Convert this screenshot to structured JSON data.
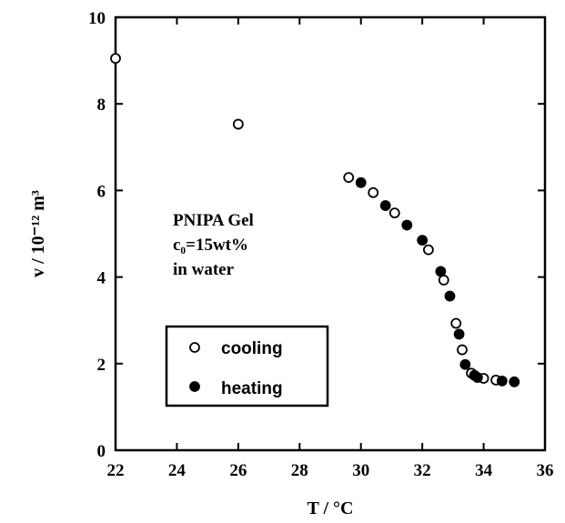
{
  "chart_data": {
    "type": "scatter",
    "xlabel": "T / °C",
    "ylabel": "v / 10⁻¹² m³",
    "xlim": [
      22,
      36
    ],
    "ylim": [
      0,
      10
    ],
    "xticks": [
      22,
      24,
      26,
      28,
      30,
      32,
      34,
      36
    ],
    "yticks": [
      0,
      2,
      4,
      6,
      8,
      10
    ],
    "annotation": [
      "PNIPA Gel",
      "c₀=15wt%",
      "in water"
    ],
    "legend_position": "bottom-left",
    "series": [
      {
        "name": "cooling",
        "marker": "open-circle",
        "points": [
          [
            22.0,
            9.05
          ],
          [
            26.0,
            7.53
          ],
          [
            29.6,
            6.3
          ],
          [
            30.4,
            5.95
          ],
          [
            31.1,
            5.48
          ],
          [
            32.2,
            4.63
          ],
          [
            32.7,
            3.93
          ],
          [
            33.1,
            2.93
          ],
          [
            33.3,
            2.32
          ],
          [
            33.6,
            1.78
          ],
          [
            34.0,
            1.66
          ],
          [
            34.4,
            1.62
          ]
        ]
      },
      {
        "name": "heating",
        "marker": "filled-circle",
        "points": [
          [
            30.0,
            6.18
          ],
          [
            30.8,
            5.65
          ],
          [
            31.5,
            5.2
          ],
          [
            32.0,
            4.85
          ],
          [
            32.6,
            4.13
          ],
          [
            32.9,
            3.56
          ],
          [
            33.2,
            2.68
          ],
          [
            33.4,
            1.98
          ],
          [
            33.7,
            1.73
          ],
          [
            33.8,
            1.68
          ],
          [
            34.6,
            1.6
          ],
          [
            35.0,
            1.58
          ]
        ]
      }
    ]
  }
}
